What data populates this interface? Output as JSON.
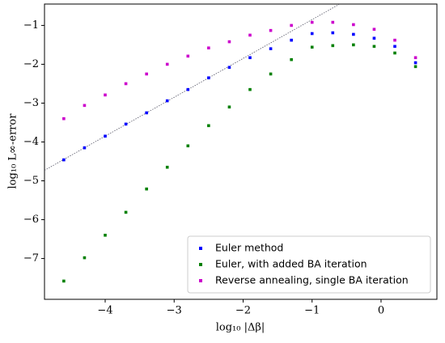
{
  "chart_data": {
    "type": "scatter",
    "xlabel": "log₁₀ |Δβ|",
    "ylabel": "log₁₀ L∞-error",
    "xlim": [
      -4.88,
      0.81
    ],
    "ylim": [
      -8.05,
      -0.45
    ],
    "xticks": [
      {
        "value": -4,
        "label": "−4"
      },
      {
        "value": -3,
        "label": "−3"
      },
      {
        "value": -2,
        "label": "−2"
      },
      {
        "value": -1,
        "label": "−1"
      },
      0
    ],
    "yticks": [
      {
        "value": -7,
        "label": "−7"
      },
      {
        "value": -6,
        "label": "−6"
      },
      {
        "value": -5,
        "label": "−5"
      },
      {
        "value": -4,
        "label": "−4"
      },
      {
        "value": -3,
        "label": "−3"
      },
      {
        "value": -2,
        "label": "−2"
      },
      {
        "value": -1,
        "label": "−1"
      }
    ],
    "legend": "lower right",
    "x": [
      -4.6,
      -4.3,
      -4.0,
      -3.7,
      -3.4,
      -3.1,
      -2.8,
      -2.5,
      -2.2,
      -1.9,
      -1.6,
      -1.3,
      -1.0,
      -0.7,
      -0.4,
      -0.1,
      0.2,
      0.5
    ],
    "series": [
      {
        "name": "Euler method",
        "color": "#0000ff",
        "values": [
          -4.46,
          -4.15,
          -3.85,
          -3.54,
          -3.25,
          -2.94,
          -2.65,
          -2.35,
          -2.08,
          -1.83,
          -1.6,
          -1.38,
          -1.21,
          -1.19,
          -1.23,
          -1.33,
          -1.54,
          -1.96
        ]
      },
      {
        "name": "Euler, with added BA iteration",
        "color": "#008000",
        "values": [
          -7.58,
          -6.98,
          -6.4,
          -5.81,
          -5.21,
          -4.65,
          -4.1,
          -3.58,
          -3.1,
          -2.65,
          -2.25,
          -1.88,
          -1.56,
          -1.52,
          -1.5,
          -1.54,
          -1.71,
          -2.06
        ]
      },
      {
        "name": "Reverse annealing, single BA iteration",
        "color": "#cc00cc",
        "values": [
          -3.4,
          -3.06,
          -2.79,
          -2.5,
          -2.25,
          -2.0,
          -1.79,
          -1.58,
          -1.42,
          -1.25,
          -1.13,
          -1.0,
          -0.92,
          -0.92,
          -0.98,
          -1.1,
          -1.38,
          -1.83
        ]
      }
    ],
    "reference_line": {
      "x": [
        -4.88,
        -0.6
      ],
      "y": [
        -4.73,
        -0.45
      ],
      "color": "#556"
    }
  }
}
